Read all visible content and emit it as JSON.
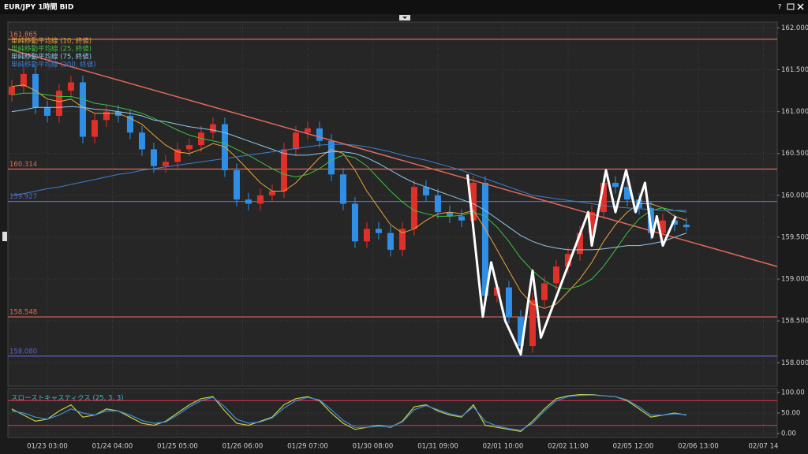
{
  "window": {
    "title": "EUR/JPY 1時間 BID",
    "help": "?"
  },
  "chart_data": [
    {
      "type": "candlestick",
      "legend": [
        {
          "name": "単純移動平均線 (10, 終値)",
          "color": "#e8a33a"
        },
        {
          "name": "単純移動平均線 (25, 終値)",
          "color": "#3fbf3f"
        },
        {
          "name": "単純移動平均線 (75, 終値)",
          "color": "#8fc7e8"
        },
        {
          "name": "単純移動平均線 (200, 終値)",
          "color": "#3b7fd0"
        }
      ],
      "up_color": "#e0302a",
      "down_color": "#2f8fe6",
      "open": [
        161.2,
        161.3,
        161.45,
        161.05,
        160.95,
        161.25,
        161.35,
        160.7,
        160.9,
        161.0,
        160.95,
        160.75,
        160.55,
        160.35,
        160.4,
        160.55,
        160.6,
        160.75,
        160.85,
        160.3,
        159.95,
        159.9,
        160.0,
        160.05,
        160.55,
        160.75,
        160.8,
        160.65,
        160.25,
        159.9,
        159.45,
        159.6,
        159.55,
        159.35,
        159.6,
        160.1,
        160.0,
        159.8,
        159.75,
        159.7,
        160.15,
        158.8,
        158.9,
        158.55,
        158.2,
        158.75,
        158.95,
        159.15,
        159.3,
        159.55,
        159.8,
        160.15,
        160.1,
        159.95,
        159.85,
        159.55,
        159.7,
        159.65
      ],
      "high": [
        161.38,
        161.53,
        161.53,
        161.13,
        161.33,
        161.43,
        161.43,
        160.98,
        161.08,
        161.08,
        161.03,
        160.83,
        160.63,
        160.48,
        160.63,
        160.68,
        160.83,
        160.93,
        160.93,
        160.38,
        160.03,
        160.08,
        160.13,
        160.63,
        160.83,
        160.88,
        160.88,
        160.73,
        160.33,
        159.98,
        159.68,
        159.68,
        159.63,
        159.68,
        160.18,
        160.18,
        160.08,
        159.88,
        159.83,
        160.23,
        160.23,
        158.98,
        158.98,
        158.63,
        158.83,
        159.03,
        159.23,
        159.38,
        159.63,
        159.88,
        160.23,
        160.23,
        160.18,
        160.03,
        159.93,
        159.78,
        159.78,
        159.73
      ],
      "low": [
        161.12,
        161.22,
        160.97,
        160.87,
        160.87,
        161.17,
        160.62,
        160.62,
        160.82,
        160.87,
        160.67,
        160.47,
        160.27,
        160.27,
        160.32,
        160.47,
        160.52,
        160.67,
        160.22,
        159.87,
        159.82,
        159.82,
        159.92,
        159.97,
        160.47,
        160.67,
        160.57,
        160.17,
        159.82,
        159.37,
        159.37,
        159.47,
        159.27,
        159.27,
        159.52,
        159.92,
        159.72,
        159.67,
        159.62,
        159.62,
        158.72,
        158.72,
        158.47,
        158.12,
        158.12,
        158.67,
        158.87,
        159.07,
        159.22,
        159.47,
        159.72,
        160.02,
        159.87,
        159.77,
        159.47,
        159.47,
        159.57,
        159.57
      ],
      "close": [
        161.3,
        161.45,
        161.05,
        160.95,
        161.25,
        161.35,
        160.7,
        160.9,
        161.0,
        160.95,
        160.75,
        160.55,
        160.35,
        160.4,
        160.55,
        160.6,
        160.75,
        160.85,
        160.3,
        159.95,
        159.9,
        160.0,
        160.05,
        160.55,
        160.75,
        160.8,
        160.65,
        160.25,
        159.9,
        159.45,
        159.6,
        159.55,
        159.35,
        159.6,
        160.1,
        160.0,
        159.8,
        159.75,
        159.7,
        160.15,
        158.8,
        158.9,
        158.55,
        158.2,
        158.75,
        158.95,
        159.15,
        159.3,
        159.55,
        159.8,
        160.15,
        160.1,
        159.95,
        159.85,
        159.55,
        159.7,
        159.65,
        159.62
      ],
      "series": [
        {
          "color": "#e8a33a",
          "values": [
            161.3,
            161.32,
            161.25,
            161.15,
            161.12,
            161.15,
            161.05,
            160.98,
            160.98,
            160.98,
            160.92,
            160.85,
            160.72,
            160.6,
            160.52,
            160.5,
            160.55,
            160.62,
            160.58,
            160.45,
            160.3,
            160.15,
            160.05,
            160.05,
            160.15,
            160.3,
            160.45,
            160.55,
            160.5,
            160.3,
            160.05,
            159.85,
            159.65,
            159.55,
            159.6,
            159.7,
            159.78,
            159.8,
            159.78,
            159.82,
            159.6,
            159.35,
            159.1,
            158.85,
            158.7,
            158.65,
            158.7,
            158.85,
            159.0,
            159.2,
            159.45,
            159.65,
            159.8,
            159.9,
            159.9,
            159.85,
            159.75,
            159.7
          ]
        },
        {
          "color": "#3fbf3f",
          "values": [
            161.2,
            161.22,
            161.22,
            161.2,
            161.18,
            161.18,
            161.15,
            161.1,
            161.08,
            161.05,
            161.02,
            160.98,
            160.92,
            160.85,
            160.78,
            160.72,
            160.68,
            160.65,
            160.62,
            160.55,
            160.48,
            160.4,
            160.32,
            160.25,
            160.22,
            160.25,
            160.32,
            160.42,
            160.48,
            160.45,
            160.35,
            160.2,
            160.05,
            159.92,
            159.82,
            159.78,
            159.75,
            159.75,
            159.76,
            159.8,
            159.75,
            159.62,
            159.45,
            159.25,
            159.1,
            158.98,
            158.9,
            158.88,
            158.92,
            159.0,
            159.15,
            159.35,
            159.55,
            159.72,
            159.82,
            159.85,
            159.82,
            159.8
          ]
        },
        {
          "color": "#8fc7e8",
          "values": [
            161.0,
            161.02,
            161.05,
            161.05,
            161.05,
            161.06,
            161.05,
            161.03,
            161.02,
            161.0,
            160.98,
            160.95,
            160.9,
            160.88,
            160.85,
            160.82,
            160.8,
            160.78,
            160.75,
            160.7,
            160.65,
            160.6,
            160.55,
            160.5,
            160.48,
            160.48,
            160.5,
            160.52,
            160.52,
            160.5,
            160.45,
            160.38,
            160.3,
            160.22,
            160.15,
            160.1,
            160.05,
            160.0,
            159.95,
            159.9,
            159.82,
            159.72,
            159.62,
            159.52,
            159.45,
            159.4,
            159.37,
            159.35,
            159.35,
            159.35,
            159.36,
            159.38,
            159.4,
            159.4,
            159.42,
            159.45,
            159.5,
            159.55
          ]
        },
        {
          "color": "#3b7fd0",
          "values": [
            160.0,
            160.02,
            160.05,
            160.08,
            160.1,
            160.13,
            160.16,
            160.19,
            160.22,
            160.25,
            160.27,
            160.3,
            160.32,
            160.34,
            160.36,
            160.38,
            160.4,
            160.42,
            160.44,
            160.46,
            160.48,
            160.5,
            160.52,
            160.54,
            160.56,
            160.58,
            160.6,
            160.61,
            160.61,
            160.6,
            160.58,
            160.55,
            160.52,
            160.48,
            160.45,
            160.42,
            160.38,
            160.34,
            160.3,
            160.25,
            160.2,
            160.15,
            160.1,
            160.05,
            160.0,
            159.98,
            159.96,
            159.94,
            159.92,
            159.9,
            159.88,
            159.86,
            159.85,
            159.84,
            159.83,
            159.82,
            159.82,
            159.82
          ]
        }
      ],
      "levels": [
        {
          "value": 161.865,
          "color": "#e06a5a"
        },
        {
          "value": 160.314,
          "color": "#e06a5a"
        },
        {
          "value": 159.927,
          "color": "#5a63c8"
        },
        {
          "value": 158.548,
          "color": "#e06a5a"
        },
        {
          "value": 158.08,
          "label": "158.080",
          "color": "#5a63c8"
        }
      ],
      "trendline": {
        "x": [
          -0.33,
          64.67
        ],
        "y": [
          161.75,
          159.15
        ],
        "color": "#e06a5a"
      },
      "zigzag": {
        "x": [
          38.5,
          39.8,
          40.5,
          41.7,
          43,
          44,
          44.7,
          48.7,
          49,
          50.2,
          51,
          51.9,
          52.7,
          53.5,
          54.1,
          54.5,
          55,
          56.1
        ],
        "y": [
          160.25,
          158.55,
          159.2,
          158.5,
          158.1,
          159.1,
          158.3,
          159.8,
          159.4,
          160.3,
          159.8,
          160.3,
          159.8,
          160.15,
          159.5,
          159.75,
          159.4,
          159.75
        ]
      },
      "xlim": [
        -0.33,
        64.67
      ],
      "ylim": [
        157.72,
        162.07
      ],
      "yticks": [
        {
          "value": 162,
          "label": "162.000"
        },
        {
          "value": 161.5,
          "label": "161.500"
        },
        {
          "value": 161,
          "label": "161.000"
        },
        {
          "value": 160.5,
          "label": "160.500"
        },
        {
          "value": 160,
          "label": "160.000"
        },
        {
          "value": 159.5,
          "label": "159.500"
        },
        {
          "value": 159,
          "label": "159.000"
        },
        {
          "value": 158.5,
          "label": "158.500"
        },
        {
          "value": 158,
          "label": "158.000"
        }
      ],
      "xticks": [
        {
          "value": 3,
          "label": "01/23 03:00"
        },
        {
          "value": 8.5,
          "label": "01/24 04:00"
        },
        {
          "value": 14,
          "label": "01/25 05:00"
        },
        {
          "value": 19.5,
          "label": "01/26 06:00"
        },
        {
          "value": 25,
          "label": "01/29 07:00"
        },
        {
          "value": 30.5,
          "label": "01/30 08:00"
        },
        {
          "value": 36,
          "label": "01/31 09:00"
        },
        {
          "value": 41.5,
          "label": "02/01 10:00"
        },
        {
          "value": 47,
          "label": "02/02 11:00"
        },
        {
          "value": 52.5,
          "label": "02/05 12:00"
        },
        {
          "value": 58,
          "label": "02/06 13:00"
        },
        {
          "value": 63.5,
          "label": "02/07 14"
        }
      ],
      "grid": true
    },
    {
      "type": "line",
      "title": "スローストキャスティクス (25, 3, 3)",
      "series": [
        {
          "color": "#c8d040",
          "values": [
            60,
            45,
            30,
            35,
            55,
            70,
            40,
            45,
            60,
            55,
            40,
            25,
            20,
            30,
            50,
            70,
            85,
            90,
            55,
            25,
            20,
            30,
            40,
            70,
            85,
            90,
            80,
            50,
            25,
            10,
            15,
            20,
            15,
            30,
            65,
            70,
            55,
            45,
            40,
            70,
            20,
            15,
            10,
            5,
            30,
            60,
            85,
            92,
            95,
            95,
            92,
            90,
            80,
            60,
            40,
            45,
            50,
            45
          ]
        },
        {
          "color": "#3b8fd8",
          "values": [
            55,
            50,
            40,
            35,
            45,
            60,
            50,
            45,
            55,
            55,
            45,
            32,
            25,
            28,
            45,
            65,
            80,
            88,
            65,
            35,
            25,
            28,
            38,
            62,
            80,
            88,
            82,
            58,
            32,
            15,
            15,
            18,
            16,
            28,
            58,
            68,
            58,
            48,
            42,
            65,
            30,
            18,
            12,
            8,
            25,
            55,
            80,
            90,
            93,
            94,
            92,
            90,
            82,
            65,
            45,
            45,
            48,
            46
          ]
        }
      ],
      "levels": [
        {
          "value": 80,
          "color": "#c0304a"
        },
        {
          "value": 20,
          "color": "#c0304a"
        }
      ],
      "xlim": [
        -0.33,
        64.67
      ],
      "ylim": [
        -9.6,
        109.6
      ],
      "yticks": [
        {
          "value": 100,
          "label": "100.00"
        },
        {
          "value": 50,
          "label": "50.00"
        },
        {
          "value": 0,
          "label": "0.00"
        }
      ],
      "grid": true
    }
  ]
}
